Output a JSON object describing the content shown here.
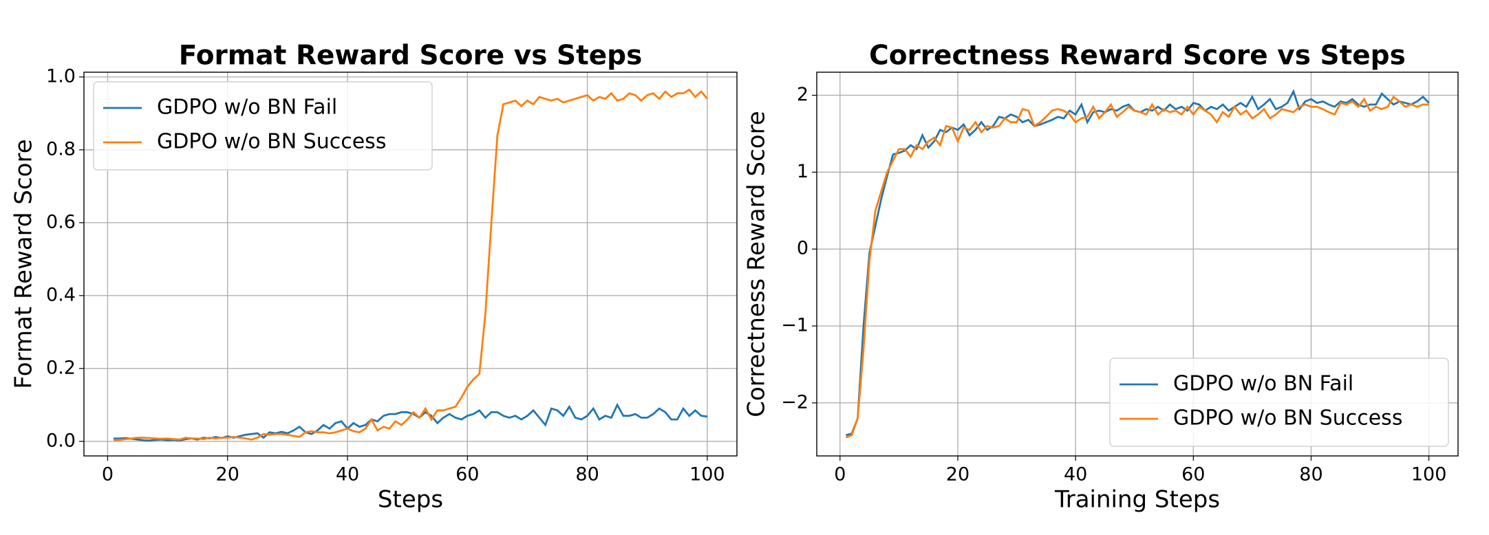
{
  "chart_data": [
    {
      "type": "line",
      "title": "Format Reward Score vs Steps",
      "xlabel": "Steps",
      "ylabel": "Format Reward Score",
      "x": [
        1,
        2,
        3,
        4,
        5,
        6,
        7,
        8,
        9,
        10,
        11,
        12,
        13,
        14,
        15,
        16,
        17,
        18,
        19,
        20,
        21,
        22,
        23,
        24,
        25,
        26,
        27,
        28,
        29,
        30,
        31,
        32,
        33,
        34,
        35,
        36,
        37,
        38,
        39,
        40,
        41,
        42,
        43,
        44,
        45,
        46,
        47,
        48,
        49,
        50,
        51,
        52,
        53,
        54,
        55,
        56,
        57,
        58,
        59,
        60,
        61,
        62,
        63,
        64,
        65,
        66,
        67,
        68,
        69,
        70,
        71,
        72,
        73,
        74,
        75,
        76,
        77,
        78,
        79,
        80,
        81,
        82,
        83,
        84,
        85,
        86,
        87,
        88,
        89,
        90,
        91,
        92,
        93,
        94,
        95,
        96,
        97,
        98,
        99,
        100
      ],
      "series": [
        {
          "name": "GDPO w/o BN Fail",
          "color": "#1f77b4",
          "values": [
            0.008,
            0.008,
            0.009,
            0.007,
            0.005,
            0.003,
            0.002,
            0.004,
            0.005,
            0.003,
            0.004,
            0.002,
            0.006,
            0.008,
            0.005,
            0.01,
            0.008,
            0.012,
            0.009,
            0.014,
            0.01,
            0.014,
            0.018,
            0.02,
            0.022,
            0.01,
            0.025,
            0.022,
            0.026,
            0.022,
            0.03,
            0.04,
            0.025,
            0.02,
            0.03,
            0.045,
            0.035,
            0.05,
            0.055,
            0.035,
            0.05,
            0.04,
            0.045,
            0.06,
            0.055,
            0.07,
            0.075,
            0.075,
            0.08,
            0.08,
            0.075,
            0.065,
            0.08,
            0.07,
            0.05,
            0.065,
            0.075,
            0.065,
            0.06,
            0.07,
            0.075,
            0.085,
            0.065,
            0.08,
            0.08,
            0.07,
            0.065,
            0.07,
            0.06,
            0.07,
            0.085,
            0.065,
            0.045,
            0.09,
            0.085,
            0.07,
            0.095,
            0.065,
            0.06,
            0.07,
            0.09,
            0.06,
            0.07,
            0.065,
            0.1,
            0.07,
            0.07,
            0.075,
            0.065,
            0.065,
            0.075,
            0.09,
            0.08,
            0.06,
            0.06,
            0.09,
            0.07,
            0.085,
            0.07,
            0.068
          ]
        },
        {
          "name": "GDPO w/o BN Success",
          "color": "#ff7f0e",
          "values": [
            0.003,
            0.004,
            0.006,
            0.008,
            0.01,
            0.01,
            0.009,
            0.008,
            0.007,
            0.008,
            0.006,
            0.005,
            0.01,
            0.008,
            0.008,
            0.006,
            0.01,
            0.008,
            0.01,
            0.01,
            0.012,
            0.01,
            0.008,
            0.005,
            0.01,
            0.02,
            0.018,
            0.02,
            0.02,
            0.018,
            0.015,
            0.012,
            0.025,
            0.028,
            0.025,
            0.025,
            0.022,
            0.025,
            0.03,
            0.035,
            0.028,
            0.025,
            0.035,
            0.06,
            0.03,
            0.04,
            0.035,
            0.055,
            0.045,
            0.06,
            0.08,
            0.065,
            0.09,
            0.06,
            0.085,
            0.085,
            0.09,
            0.095,
            0.12,
            0.15,
            0.17,
            0.185,
            0.35,
            0.6,
            0.84,
            0.925,
            0.93,
            0.935,
            0.92,
            0.935,
            0.925,
            0.945,
            0.94,
            0.935,
            0.94,
            0.93,
            0.935,
            0.94,
            0.945,
            0.95,
            0.935,
            0.945,
            0.94,
            0.955,
            0.935,
            0.94,
            0.955,
            0.95,
            0.935,
            0.95,
            0.955,
            0.94,
            0.96,
            0.945,
            0.955,
            0.955,
            0.965,
            0.945,
            0.96,
            0.94
          ]
        }
      ],
      "xlim": [
        -3.95,
        104.95
      ],
      "xticks": [
        0,
        20,
        40,
        60,
        80,
        100
      ],
      "ylim": [
        -0.04,
        1.013
      ],
      "yticks": [
        {
          "value": 0,
          "label": "0.0"
        },
        0.2,
        0.4,
        0.6,
        0.8,
        {
          "value": 1,
          "label": "1.0"
        }
      ],
      "grid": true,
      "legend": "upper left"
    },
    {
      "type": "line",
      "title": "Correctness Reward Score vs Steps",
      "xlabel": "Training Steps",
      "ylabel": "Correctness Reward Score",
      "x": [
        1,
        2,
        3,
        4,
        5,
        6,
        7,
        8,
        9,
        10,
        11,
        12,
        13,
        14,
        15,
        16,
        17,
        18,
        19,
        20,
        21,
        22,
        23,
        24,
        25,
        26,
        27,
        28,
        29,
        30,
        31,
        32,
        33,
        34,
        35,
        36,
        37,
        38,
        39,
        40,
        41,
        42,
        43,
        44,
        45,
        46,
        47,
        48,
        49,
        50,
        51,
        52,
        53,
        54,
        55,
        56,
        57,
        58,
        59,
        60,
        61,
        62,
        63,
        64,
        65,
        66,
        67,
        68,
        69,
        70,
        71,
        72,
        73,
        74,
        75,
        76,
        77,
        78,
        79,
        80,
        81,
        82,
        83,
        84,
        85,
        86,
        87,
        88,
        89,
        90,
        91,
        92,
        93,
        94,
        95,
        96,
        97,
        98,
        99,
        100
      ],
      "series": [
        {
          "name": "GDPO w/o BN Fail",
          "color": "#1f77b4",
          "values": [
            -2.42,
            -2.4,
            -2.2,
            -1.0,
            -0.05,
            0.3,
            0.65,
            0.95,
            1.23,
            1.25,
            1.28,
            1.35,
            1.3,
            1.48,
            1.32,
            1.4,
            1.55,
            1.52,
            1.58,
            1.55,
            1.62,
            1.48,
            1.55,
            1.65,
            1.55,
            1.6,
            1.72,
            1.7,
            1.75,
            1.72,
            1.65,
            1.68,
            1.6,
            1.62,
            1.65,
            1.68,
            1.72,
            1.7,
            1.8,
            1.75,
            1.88,
            1.65,
            1.78,
            1.8,
            1.78,
            1.82,
            1.8,
            1.85,
            1.88,
            1.8,
            1.78,
            1.82,
            1.8,
            1.85,
            1.8,
            1.88,
            1.82,
            1.85,
            1.8,
            1.9,
            1.88,
            1.8,
            1.85,
            1.82,
            1.88,
            1.8,
            1.85,
            1.9,
            1.85,
            1.98,
            1.82,
            1.88,
            1.95,
            1.82,
            1.85,
            1.9,
            2.05,
            1.82,
            1.92,
            1.95,
            1.9,
            1.92,
            1.88,
            1.85,
            1.92,
            1.9,
            1.95,
            1.88,
            1.85,
            1.88,
            1.88,
            2.02,
            1.95,
            1.88,
            1.92,
            1.9,
            1.88,
            1.92,
            1.98,
            1.9
          ]
        },
        {
          "name": "GDPO w/o BN Success",
          "color": "#ff7f0e",
          "values": [
            -2.45,
            -2.42,
            -2.2,
            -1.3,
            -0.15,
            0.5,
            0.75,
            1.0,
            1.15,
            1.3,
            1.3,
            1.2,
            1.35,
            1.3,
            1.4,
            1.45,
            1.35,
            1.6,
            1.58,
            1.4,
            1.58,
            1.55,
            1.65,
            1.52,
            1.6,
            1.58,
            1.6,
            1.7,
            1.65,
            1.65,
            1.82,
            1.8,
            1.6,
            1.65,
            1.72,
            1.8,
            1.82,
            1.8,
            1.75,
            1.65,
            1.7,
            1.72,
            1.85,
            1.7,
            1.78,
            1.88,
            1.72,
            1.78,
            1.85,
            1.8,
            1.78,
            1.75,
            1.88,
            1.75,
            1.82,
            1.78,
            1.8,
            1.75,
            1.85,
            1.75,
            1.85,
            1.8,
            1.75,
            1.65,
            1.78,
            1.72,
            1.85,
            1.75,
            1.8,
            1.7,
            1.75,
            1.82,
            1.7,
            1.75,
            1.82,
            1.8,
            1.78,
            1.85,
            1.88,
            1.85,
            1.85,
            1.82,
            1.78,
            1.75,
            1.9,
            1.88,
            1.92,
            1.85,
            1.95,
            1.8,
            1.85,
            1.82,
            1.85,
            1.98,
            1.92,
            1.85,
            1.88,
            1.85,
            1.88,
            1.88
          ]
        }
      ],
      "xlim": [
        -3.95,
        104.95
      ],
      "xticks": [
        0,
        20,
        40,
        60,
        80,
        100
      ],
      "ylim": [
        -2.69,
        2.3
      ],
      "yticks": [
        {
          "value": -2,
          "label": "−2"
        },
        {
          "value": -1,
          "label": "−1"
        },
        0,
        1,
        2
      ],
      "grid": true,
      "legend": "lower right"
    }
  ]
}
